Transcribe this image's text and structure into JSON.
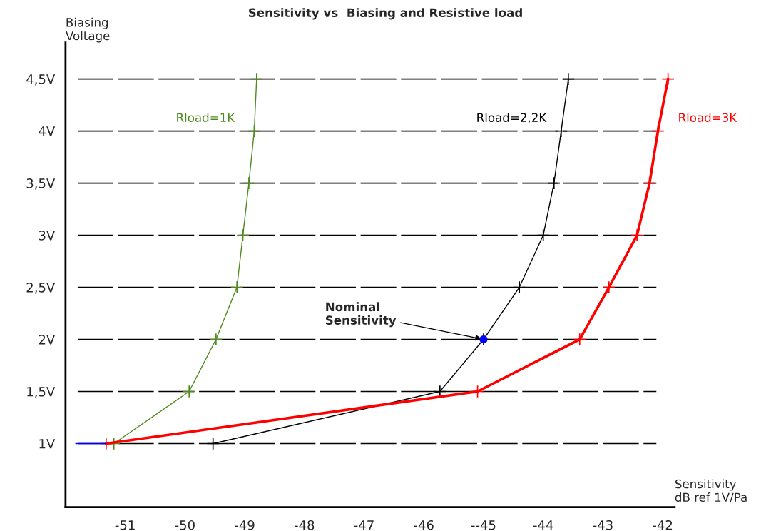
{
  "chart_data": {
    "type": "line",
    "title": "Sensitivity vs  Biasing and Resistive load",
    "xlabel": "Sensitivity\ndB ref 1V/Pa",
    "ylabel": "Biasing\nVoltage",
    "xlim": [
      -52,
      -41.8
    ],
    "xticks": [
      -51,
      -50,
      -49,
      -48,
      -47,
      -46,
      {
        "value": -45,
        "label": "--45"
      },
      -44,
      -43,
      -42
    ],
    "ylim": [
      0.39,
      4.85
    ],
    "yticks": [
      {
        "value": 1,
        "label": "1V"
      },
      {
        "value": 1.5,
        "label": "1,5V"
      },
      {
        "value": 2,
        "label": "2V"
      },
      {
        "value": 2.5,
        "label": "2,5V"
      },
      {
        "value": 3,
        "label": "3V"
      },
      {
        "value": 3.5,
        "label": "3,5V"
      },
      {
        "value": 4,
        "label": "4V"
      },
      {
        "value": 4.5,
        "label": "4,5V"
      }
    ],
    "grid": "y",
    "marker": "cross",
    "legend": false,
    "series": [
      {
        "name": "Rload=1K",
        "color": "#4f8a1e",
        "x": [
          -51.19,
          -49.93,
          -49.48,
          -49.13,
          -49.03,
          -48.93,
          -48.84,
          -48.8
        ],
        "values": [
          1,
          1.5,
          2,
          2.5,
          3,
          3.5,
          4,
          4.5
        ]
      },
      {
        "name": "Rload=2,2K",
        "color": "#000000",
        "x": [
          -49.53,
          -45.73,
          -45.0,
          -44.4,
          -44.0,
          -43.82,
          -43.7,
          -43.58
        ],
        "values": [
          1,
          1.5,
          2,
          2.5,
          3,
          3.5,
          4,
          4.5
        ]
      },
      {
        "name": "Rload=3K",
        "color": "#ff0000",
        "x": [
          -51.32,
          -45.1,
          -43.39,
          -42.9,
          -42.43,
          -42.22,
          -42.08,
          -41.91
        ],
        "values": [
          1,
          1.5,
          2,
          2.5,
          3,
          3.5,
          4,
          4.5
        ]
      },
      {
        "color": "#0000ff",
        "marker": "none",
        "x": [
          -51.83,
          -51.32
        ],
        "values": [
          1,
          1
        ]
      },
      {
        "type": "scatter",
        "color": "#0000ff",
        "marker": "circle",
        "x": [
          -45.0
        ],
        "values": [
          2
        ]
      }
    ],
    "annotations": [
      {
        "text": "Nominal\nSensitivity",
        "x": -45.0,
        "y": 2
      }
    ]
  }
}
